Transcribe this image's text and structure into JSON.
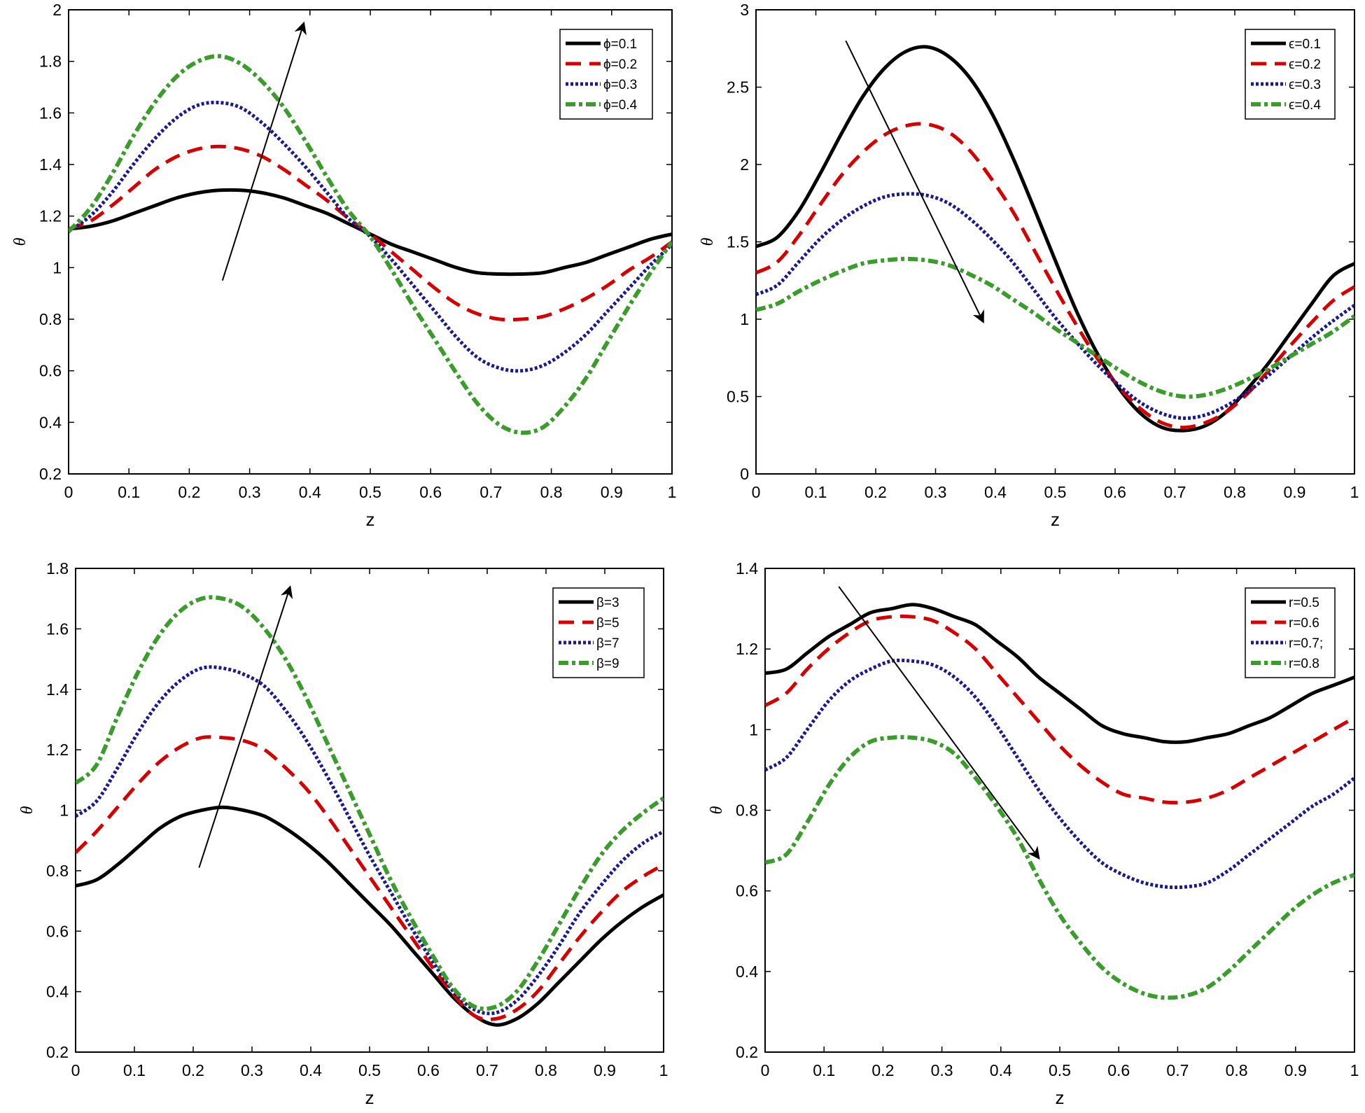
{
  "chart_data": [
    {
      "type": "line",
      "xlabel": "z",
      "ylabel": "θ",
      "xlim": [
        0,
        1
      ],
      "ylim": [
        0.2,
        2
      ],
      "xticks": [
        "0",
        "0.1",
        "0.2",
        "0.3",
        "0.4",
        "0.5",
        "0.6",
        "0.7",
        "0.8",
        "0.9",
        "1"
      ],
      "yticks": [
        "0.2",
        "0.4",
        "0.6",
        "0.8",
        "1",
        "1.2",
        "1.4",
        "1.6",
        "1.8",
        "2"
      ],
      "legend_position": "top-right",
      "trend_arrow": {
        "from": [
          0.255,
          0.95
        ],
        "to": [
          0.39,
          1.95
        ]
      },
      "series": [
        {
          "name": "ϕ=0.1",
          "color": "#000000",
          "style": "solid",
          "values": [
            1.15,
            1.16,
            1.18,
            1.21,
            1.24,
            1.27,
            1.29,
            1.3,
            1.3,
            1.29,
            1.27,
            1.24,
            1.21,
            1.17,
            1.13,
            1.09,
            1.06,
            1.03,
            1.0,
            0.98,
            0.975,
            0.975,
            0.98,
            1.0,
            1.02,
            1.05,
            1.08,
            1.11,
            1.13
          ]
        },
        {
          "name": "ϕ=0.2",
          "color": "#d40000",
          "style": "dashed",
          "values": [
            1.15,
            1.18,
            1.24,
            1.31,
            1.38,
            1.43,
            1.46,
            1.47,
            1.46,
            1.43,
            1.38,
            1.32,
            1.26,
            1.19,
            1.13,
            1.06,
            0.99,
            0.92,
            0.86,
            0.82,
            0.8,
            0.8,
            0.81,
            0.84,
            0.88,
            0.93,
            0.99,
            1.04,
            1.1
          ]
        },
        {
          "name": "ϕ=0.3",
          "color": "#1a1a8c",
          "style": "dotted",
          "values": [
            1.14,
            1.2,
            1.29,
            1.4,
            1.5,
            1.58,
            1.63,
            1.64,
            1.62,
            1.56,
            1.48,
            1.39,
            1.29,
            1.19,
            1.12,
            1.03,
            0.93,
            0.83,
            0.73,
            0.65,
            0.61,
            0.6,
            0.62,
            0.67,
            0.74,
            0.83,
            0.92,
            1.01,
            1.09
          ]
        },
        {
          "name": "ϕ=0.4",
          "color": "#3a9c2a",
          "style": "dashdot",
          "values": [
            1.14,
            1.23,
            1.36,
            1.51,
            1.64,
            1.74,
            1.8,
            1.82,
            1.79,
            1.72,
            1.62,
            1.49,
            1.35,
            1.22,
            1.12,
            0.99,
            0.85,
            0.72,
            0.59,
            0.47,
            0.39,
            0.36,
            0.38,
            0.46,
            0.57,
            0.71,
            0.85,
            0.98,
            1.1
          ]
        }
      ]
    },
    {
      "type": "line",
      "xlabel": "z",
      "ylabel": "θ",
      "xlim": [
        0,
        1
      ],
      "ylim": [
        0,
        3
      ],
      "xticks": [
        "0",
        "0.1",
        "0.2",
        "0.3",
        "0.4",
        "0.5",
        "0.6",
        "0.7",
        "0.8",
        "0.9",
        "1"
      ],
      "yticks": [
        "0",
        "0.5",
        "1",
        "1.5",
        "2",
        "2.5",
        "3"
      ],
      "legend_position": "top-right",
      "trend_arrow": {
        "from": [
          0.15,
          2.8
        ],
        "to": [
          0.38,
          0.98
        ]
      },
      "series": [
        {
          "name": "ϵ=0.1",
          "color": "#000000",
          "style": "solid",
          "values": [
            1.47,
            1.53,
            1.7,
            1.94,
            2.2,
            2.44,
            2.62,
            2.73,
            2.76,
            2.7,
            2.56,
            2.34,
            2.05,
            1.72,
            1.38,
            1.05,
            0.77,
            0.55,
            0.39,
            0.3,
            0.28,
            0.31,
            0.4,
            0.55,
            0.72,
            0.91,
            1.1,
            1.28,
            1.36
          ]
        },
        {
          "name": "ϵ=0.2",
          "color": "#d40000",
          "style": "dashed",
          "values": [
            1.3,
            1.37,
            1.54,
            1.74,
            1.93,
            2.08,
            2.19,
            2.25,
            2.26,
            2.21,
            2.09,
            1.91,
            1.7,
            1.45,
            1.2,
            0.96,
            0.74,
            0.56,
            0.42,
            0.33,
            0.3,
            0.33,
            0.4,
            0.52,
            0.67,
            0.83,
            0.98,
            1.12,
            1.21
          ]
        },
        {
          "name": "ϵ=0.3",
          "color": "#1a1a8c",
          "style": "dotted",
          "values": [
            1.16,
            1.22,
            1.37,
            1.52,
            1.64,
            1.73,
            1.79,
            1.81,
            1.8,
            1.75,
            1.65,
            1.52,
            1.37,
            1.19,
            1.01,
            0.85,
            0.7,
            0.57,
            0.46,
            0.39,
            0.36,
            0.38,
            0.44,
            0.53,
            0.64,
            0.76,
            0.88,
            0.99,
            1.09
          ]
        },
        {
          "name": "ϵ=0.4",
          "color": "#3a9c2a",
          "style": "dashdot",
          "values": [
            1.06,
            1.1,
            1.18,
            1.25,
            1.31,
            1.36,
            1.38,
            1.39,
            1.38,
            1.35,
            1.29,
            1.22,
            1.13,
            1.04,
            0.94,
            0.85,
            0.76,
            0.67,
            0.59,
            0.53,
            0.5,
            0.51,
            0.55,
            0.61,
            0.68,
            0.76,
            0.84,
            0.92,
            1.02
          ]
        }
      ]
    },
    {
      "type": "line",
      "xlabel": "z",
      "ylabel": "θ",
      "xlim": [
        0,
        1
      ],
      "ylim": [
        0.2,
        1.8
      ],
      "xticks": [
        "0",
        "0.1",
        "0.2",
        "0.3",
        "0.4",
        "0.5",
        "0.6",
        "0.7",
        "0.8",
        "0.9",
        "1"
      ],
      "yticks": [
        "0.2",
        "0.4",
        "0.6",
        "0.8",
        "1",
        "1.2",
        "1.4",
        "1.6",
        "1.8"
      ],
      "legend_position": "top-right",
      "trend_arrow": {
        "from": [
          0.21,
          0.81
        ],
        "to": [
          0.365,
          1.74
        ]
      },
      "series": [
        {
          "name": "β=3",
          "color": "#000000",
          "style": "solid",
          "values": [
            0.75,
            0.77,
            0.82,
            0.88,
            0.94,
            0.98,
            1.0,
            1.01,
            1.0,
            0.98,
            0.94,
            0.89,
            0.83,
            0.76,
            0.69,
            0.62,
            0.54,
            0.46,
            0.38,
            0.32,
            0.29,
            0.31,
            0.36,
            0.43,
            0.5,
            0.57,
            0.63,
            0.68,
            0.72
          ]
        },
        {
          "name": "β=5",
          "color": "#d40000",
          "style": "dashed",
          "values": [
            0.86,
            0.93,
            1.01,
            1.09,
            1.16,
            1.21,
            1.24,
            1.24,
            1.23,
            1.2,
            1.14,
            1.07,
            0.98,
            0.88,
            0.78,
            0.68,
            0.58,
            0.48,
            0.39,
            0.32,
            0.31,
            0.34,
            0.4,
            0.49,
            0.58,
            0.66,
            0.73,
            0.78,
            0.82
          ]
        },
        {
          "name": "β=7",
          "color": "#1a1a8c",
          "style": "dotted",
          "values": [
            0.98,
            1.03,
            1.14,
            1.26,
            1.36,
            1.43,
            1.47,
            1.47,
            1.45,
            1.41,
            1.33,
            1.23,
            1.11,
            0.98,
            0.85,
            0.73,
            0.61,
            0.5,
            0.4,
            0.34,
            0.33,
            0.37,
            0.45,
            0.55,
            0.66,
            0.75,
            0.83,
            0.89,
            0.93
          ]
        },
        {
          "name": "β=9",
          "color": "#3a9c2a",
          "style": "dashdot",
          "values": [
            1.09,
            1.15,
            1.31,
            1.46,
            1.58,
            1.66,
            1.7,
            1.7,
            1.67,
            1.6,
            1.5,
            1.37,
            1.22,
            1.07,
            0.92,
            0.77,
            0.64,
            0.52,
            0.41,
            0.35,
            0.35,
            0.4,
            0.5,
            0.62,
            0.74,
            0.85,
            0.93,
            0.99,
            1.04
          ]
        }
      ]
    },
    {
      "type": "line",
      "xlabel": "z",
      "ylabel": "θ",
      "xlim": [
        0,
        1
      ],
      "ylim": [
        0.2,
        1.4
      ],
      "xticks": [
        "0",
        "0.1",
        "0.2",
        "0.3",
        "0.4",
        "0.5",
        "0.6",
        "0.7",
        "0.8",
        "0.9",
        "1"
      ],
      "yticks": [
        "0.2",
        "0.4",
        "0.6",
        "0.8",
        "1",
        "1.2",
        "1.4"
      ],
      "legend_position": "top-right",
      "trend_arrow": {
        "from": [
          0.125,
          1.355
        ],
        "to": [
          0.465,
          0.68
        ]
      },
      "series": [
        {
          "name": "r=0.5",
          "color": "#000000",
          "style": "solid",
          "values": [
            1.14,
            1.15,
            1.19,
            1.23,
            1.26,
            1.29,
            1.3,
            1.31,
            1.3,
            1.28,
            1.26,
            1.22,
            1.18,
            1.13,
            1.09,
            1.05,
            1.01,
            0.99,
            0.98,
            0.97,
            0.97,
            0.98,
            0.99,
            1.01,
            1.03,
            1.06,
            1.09,
            1.11,
            1.13
          ]
        },
        {
          "name": "r=0.6",
          "color": "#d40000",
          "style": "dashed",
          "values": [
            1.06,
            1.09,
            1.15,
            1.2,
            1.24,
            1.27,
            1.28,
            1.28,
            1.27,
            1.24,
            1.2,
            1.14,
            1.08,
            1.02,
            0.96,
            0.91,
            0.87,
            0.84,
            0.83,
            0.82,
            0.82,
            0.83,
            0.85,
            0.88,
            0.91,
            0.94,
            0.97,
            1.0,
            1.03
          ]
        },
        {
          "name": "r=0.7;",
          "color": "#1a1a8c",
          "style": "dotted",
          "values": [
            0.9,
            0.93,
            1.0,
            1.07,
            1.12,
            1.15,
            1.17,
            1.17,
            1.16,
            1.13,
            1.08,
            1.01,
            0.93,
            0.85,
            0.78,
            0.72,
            0.67,
            0.64,
            0.62,
            0.61,
            0.61,
            0.62,
            0.65,
            0.69,
            0.73,
            0.77,
            0.81,
            0.84,
            0.88
          ]
        },
        {
          "name": "r=0.8",
          "color": "#3a9c2a",
          "style": "dashdot",
          "values": [
            0.67,
            0.69,
            0.77,
            0.86,
            0.93,
            0.97,
            0.98,
            0.98,
            0.97,
            0.94,
            0.88,
            0.81,
            0.73,
            0.63,
            0.54,
            0.47,
            0.41,
            0.37,
            0.345,
            0.335,
            0.34,
            0.36,
            0.4,
            0.45,
            0.5,
            0.55,
            0.59,
            0.62,
            0.64
          ]
        }
      ]
    }
  ]
}
